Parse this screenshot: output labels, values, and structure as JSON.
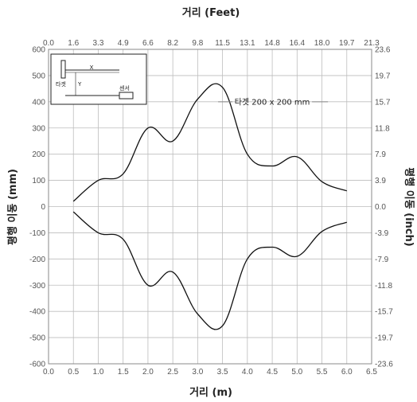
{
  "chart_data": {
    "type": "line",
    "title": "",
    "xlabel": "거리 (m)",
    "xlabel_top": "거리 (Feet)",
    "ylabel": "평행 이동 (mm)",
    "ylabel_right": "평행 이동 (inch)",
    "xlim": [
      0,
      6.5
    ],
    "ylim": [
      -600,
      600
    ],
    "x_ticks": [
      "0.0",
      "0.5",
      "1.0",
      "1.5",
      "2.0",
      "2.5",
      "3.0",
      "3.5",
      "4.0",
      "4.5",
      "5.0",
      "5.5",
      "6.0",
      "6.5"
    ],
    "x_top_ticks": [
      "0.0",
      "1.6",
      "3.3",
      "4.9",
      "6.6",
      "8.2",
      "9.8",
      "11.5",
      "13.1",
      "14.8",
      "16.4",
      "18.0",
      "19.7",
      "21.3"
    ],
    "y_ticks": [
      "600",
      "500",
      "400",
      "300",
      "200",
      "100",
      "0",
      "-100",
      "-200",
      "-300",
      "-400",
      "-500",
      "-600"
    ],
    "y_right_ticks": [
      "23.6",
      "19.7",
      "15.7",
      "11.8",
      "7.9",
      "3.9",
      "0.0",
      "-3.9",
      "-7.9",
      "-11.8",
      "-15.7",
      "-19.7",
      "-23.6"
    ],
    "grid": true,
    "series": [
      {
        "x": [
          0.5,
          1.0,
          1.5,
          2.0,
          2.5,
          3.0,
          3.5,
          4.0,
          4.5,
          5.0,
          5.5,
          6.0
        ],
        "values": [
          20,
          100,
          125,
          300,
          250,
          410,
          455,
          200,
          155,
          190,
          95,
          60
        ]
      },
      {
        "x": [
          0.5,
          1.0,
          1.5,
          2.0,
          2.5,
          3.0,
          3.5,
          4.0,
          4.5,
          5.0,
          5.5,
          6.0
        ],
        "values": [
          -20,
          -100,
          -125,
          -300,
          -250,
          -410,
          -455,
          -200,
          -155,
          -190,
          -95,
          -60
        ]
      }
    ],
    "annotation": {
      "text": "타겟 200 x 200 mm",
      "x": 4.5,
      "y": 400
    },
    "inset": {
      "target_label": "타겟",
      "sensor_label": "센서",
      "x_label": "X",
      "y_label": "Y"
    }
  }
}
